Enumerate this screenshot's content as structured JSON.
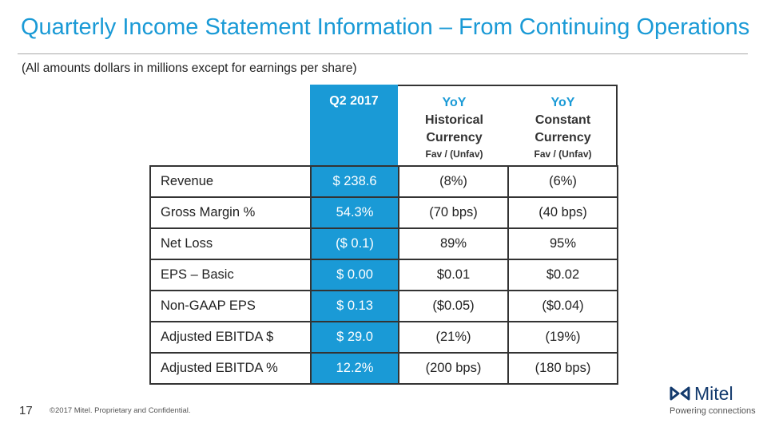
{
  "slide": {
    "title": "Quarterly Income Statement Information – From Continuing Operations",
    "subtitle": "(All amounts dollars in millions except for earnings per share)",
    "page_number": "17",
    "footer": "©2017 Mitel. Proprietary and Confidential."
  },
  "table": {
    "headers": {
      "q2": "Q2 2017",
      "hist": {
        "line1": "YoY",
        "line2": "Historical",
        "line3": "Currency",
        "line4": "Fav / (Unfav)"
      },
      "const": {
        "line1": "YoY",
        "line2": "Constant",
        "line3": "Currency",
        "line4": "Fav / (Unfav)"
      }
    },
    "rows": [
      {
        "label": "Revenue",
        "q2": "$ 238.6",
        "hist": "(8%)",
        "const": "(6%)"
      },
      {
        "label": "Gross Margin %",
        "q2": "54.3%",
        "hist": "(70 bps)",
        "const": "(40 bps)"
      },
      {
        "label": "Net Loss",
        "q2": "($ 0.1)",
        "hist": "89%",
        "const": "95%"
      },
      {
        "label": "EPS – Basic",
        "q2": "$ 0.00",
        "hist": "$0.01",
        "const": "$0.02"
      },
      {
        "label": "Non-GAAP EPS",
        "q2": "$ 0.13",
        "hist": "($0.05)",
        "const": "($0.04)"
      },
      {
        "label": "Adjusted EBITDA $",
        "q2": "$ 29.0",
        "hist": "(21%)",
        "const": "(19%)"
      },
      {
        "label": "Adjusted EBITDA %",
        "q2": "12.2%",
        "hist": "(200 bps)",
        "const": "(180 bps)"
      }
    ]
  },
  "brand": {
    "name": "Mitel",
    "tagline": "Powering connections",
    "logo_icon": "mitel-logo-icon",
    "colors": {
      "accent": "#1a9ad6",
      "logo_navy": "#133a6d"
    }
  }
}
